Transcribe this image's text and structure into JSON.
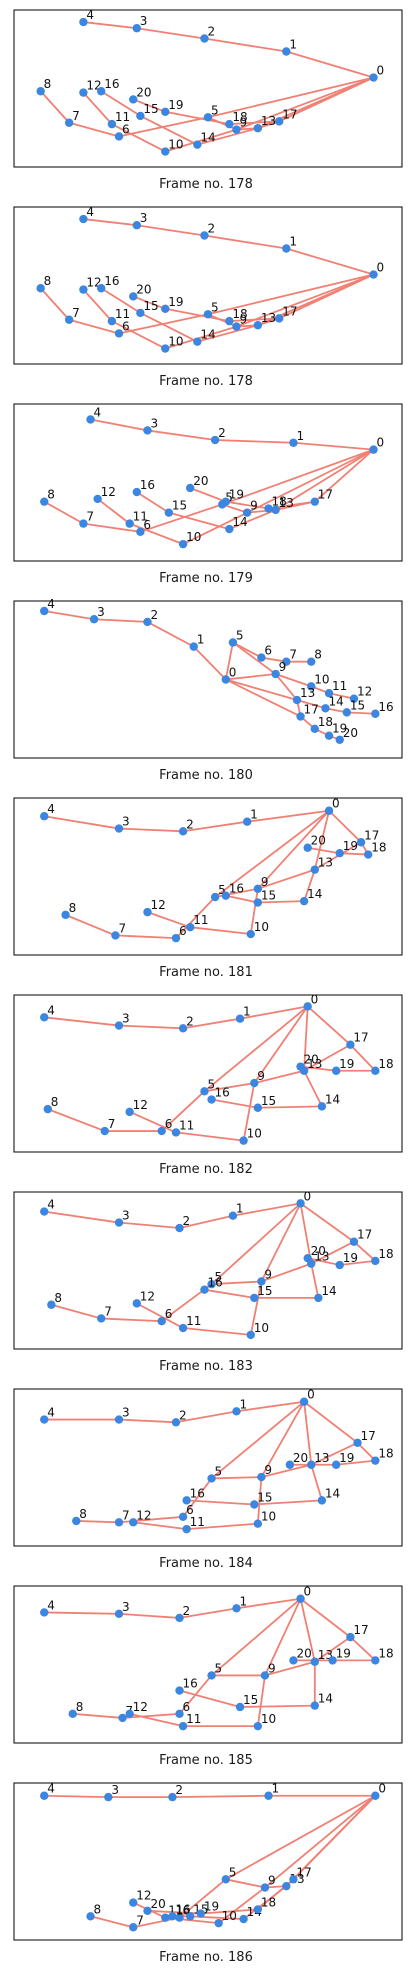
{
  "colors": {
    "edge": "#f08074",
    "node": "#3b86e0",
    "frame": "#000000"
  },
  "edges": [
    [
      0,
      1
    ],
    [
      1,
      2
    ],
    [
      2,
      3
    ],
    [
      3,
      4
    ],
    [
      0,
      5
    ],
    [
      5,
      6
    ],
    [
      6,
      7
    ],
    [
      7,
      8
    ],
    [
      0,
      9
    ],
    [
      9,
      10
    ],
    [
      10,
      11
    ],
    [
      11,
      12
    ],
    [
      0,
      13
    ],
    [
      13,
      14
    ],
    [
      14,
      15
    ],
    [
      15,
      16
    ],
    [
      0,
      17
    ],
    [
      17,
      18
    ],
    [
      18,
      19
    ],
    [
      19,
      20
    ],
    [
      5,
      9
    ],
    [
      9,
      13
    ],
    [
      13,
      17
    ]
  ],
  "panels": [
    {
      "caption": "Frame no. 178",
      "nodes": [
        [
          0.965,
          0.42
        ],
        [
          0.72,
          0.23
        ],
        [
          0.49,
          0.135
        ],
        [
          0.3,
          0.06
        ],
        [
          0.15,
          0.015
        ],
        [
          0.5,
          0.71
        ],
        [
          0.25,
          0.85
        ],
        [
          0.11,
          0.75
        ],
        [
          0.03,
          0.52
        ],
        [
          0.58,
          0.8
        ],
        [
          0.38,
          0.96
        ],
        [
          0.23,
          0.76
        ],
        [
          0.15,
          0.53
        ],
        [
          0.64,
          0.79
        ],
        [
          0.47,
          0.91
        ],
        [
          0.31,
          0.7
        ],
        [
          0.2,
          0.52
        ],
        [
          0.7,
          0.74
        ],
        [
          0.56,
          0.76
        ],
        [
          0.38,
          0.67
        ],
        [
          0.29,
          0.58
        ]
      ]
    },
    {
      "caption": "Frame no. 178",
      "nodes": [
        [
          0.965,
          0.42
        ],
        [
          0.72,
          0.23
        ],
        [
          0.49,
          0.135
        ],
        [
          0.3,
          0.06
        ],
        [
          0.15,
          0.015
        ],
        [
          0.5,
          0.71
        ],
        [
          0.25,
          0.85
        ],
        [
          0.11,
          0.75
        ],
        [
          0.03,
          0.52
        ],
        [
          0.58,
          0.8
        ],
        [
          0.38,
          0.96
        ],
        [
          0.23,
          0.76
        ],
        [
          0.15,
          0.53
        ],
        [
          0.64,
          0.79
        ],
        [
          0.47,
          0.91
        ],
        [
          0.31,
          0.7
        ],
        [
          0.2,
          0.52
        ],
        [
          0.7,
          0.74
        ],
        [
          0.56,
          0.76
        ],
        [
          0.38,
          0.67
        ],
        [
          0.29,
          0.58
        ]
      ]
    },
    {
      "caption": "Frame no. 179",
      "nodes": [
        [
          0.965,
          0.26
        ],
        [
          0.74,
          0.21
        ],
        [
          0.52,
          0.19
        ],
        [
          0.33,
          0.12
        ],
        [
          0.17,
          0.04
        ],
        [
          0.54,
          0.66
        ],
        [
          0.31,
          0.86
        ],
        [
          0.15,
          0.8
        ],
        [
          0.04,
          0.64
        ],
        [
          0.61,
          0.72
        ],
        [
          0.43,
          0.95
        ],
        [
          0.28,
          0.8
        ],
        [
          0.19,
          0.62
        ],
        [
          0.69,
          0.7
        ],
        [
          0.56,
          0.84
        ],
        [
          0.39,
          0.72
        ],
        [
          0.3,
          0.57
        ],
        [
          0.8,
          0.64
        ],
        [
          0.67,
          0.69
        ],
        [
          0.55,
          0.64
        ],
        [
          0.45,
          0.54
        ]
      ]
    },
    {
      "caption": "Frame no. 180",
      "nodes": [
        [
          0.55,
          0.5
        ],
        [
          0.46,
          0.26
        ],
        [
          0.33,
          0.08
        ],
        [
          0.18,
          0.06
        ],
        [
          0.04,
          0.0
        ],
        [
          0.57,
          0.23
        ],
        [
          0.65,
          0.34
        ],
        [
          0.72,
          0.37
        ],
        [
          0.79,
          0.37
        ],
        [
          0.69,
          0.46
        ],
        [
          0.79,
          0.55
        ],
        [
          0.84,
          0.6
        ],
        [
          0.91,
          0.64
        ],
        [
          0.75,
          0.65
        ],
        [
          0.83,
          0.71
        ],
        [
          0.89,
          0.74
        ],
        [
          0.97,
          0.75
        ],
        [
          0.76,
          0.77
        ],
        [
          0.8,
          0.86
        ],
        [
          0.84,
          0.91
        ],
        [
          0.87,
          0.94
        ]
      ]
    },
    {
      "caption": "Frame no. 181",
      "nodes": [
        [
          0.84,
          0.02
        ],
        [
          0.61,
          0.1
        ],
        [
          0.43,
          0.17
        ],
        [
          0.25,
          0.15
        ],
        [
          0.04,
          0.06
        ],
        [
          0.52,
          0.65
        ],
        [
          0.41,
          0.95
        ],
        [
          0.24,
          0.93
        ],
        [
          0.1,
          0.78
        ],
        [
          0.64,
          0.59
        ],
        [
          0.62,
          0.92
        ],
        [
          0.45,
          0.87
        ],
        [
          0.33,
          0.76
        ],
        [
          0.8,
          0.45
        ],
        [
          0.77,
          0.68
        ],
        [
          0.64,
          0.69
        ],
        [
          0.55,
          0.64
        ],
        [
          0.93,
          0.25
        ],
        [
          0.95,
          0.34
        ],
        [
          0.87,
          0.33
        ],
        [
          0.78,
          0.29
        ]
      ]
    },
    {
      "caption": "Frame no. 182",
      "nodes": [
        [
          0.78,
          0.01
        ],
        [
          0.59,
          0.1
        ],
        [
          0.43,
          0.17
        ],
        [
          0.25,
          0.15
        ],
        [
          0.04,
          0.09
        ],
        [
          0.49,
          0.63
        ],
        [
          0.37,
          0.92
        ],
        [
          0.21,
          0.92
        ],
        [
          0.05,
          0.76
        ],
        [
          0.63,
          0.57
        ],
        [
          0.6,
          0.99
        ],
        [
          0.41,
          0.93
        ],
        [
          0.28,
          0.78
        ],
        [
          0.77,
          0.48
        ],
        [
          0.82,
          0.74
        ],
        [
          0.64,
          0.75
        ],
        [
          0.51,
          0.69
        ],
        [
          0.9,
          0.29
        ],
        [
          0.97,
          0.48
        ],
        [
          0.86,
          0.48
        ],
        [
          0.76,
          0.45
        ]
      ]
    },
    {
      "caption": "Frame no. 183",
      "nodes": [
        [
          0.76,
          0.01
        ],
        [
          0.57,
          0.1
        ],
        [
          0.42,
          0.19
        ],
        [
          0.25,
          0.15
        ],
        [
          0.04,
          0.07
        ],
        [
          0.51,
          0.6
        ],
        [
          0.37,
          0.87
        ],
        [
          0.2,
          0.85
        ],
        [
          0.06,
          0.75
        ],
        [
          0.65,
          0.58
        ],
        [
          0.62,
          0.97
        ],
        [
          0.43,
          0.92
        ],
        [
          0.3,
          0.74
        ],
        [
          0.79,
          0.45
        ],
        [
          0.81,
          0.7
        ],
        [
          0.63,
          0.7
        ],
        [
          0.49,
          0.64
        ],
        [
          0.91,
          0.29
        ],
        [
          0.97,
          0.43
        ],
        [
          0.87,
          0.46
        ],
        [
          0.78,
          0.41
        ]
      ]
    },
    {
      "caption": "Frame no. 184",
      "nodes": [
        [
          0.77,
          0.02
        ],
        [
          0.58,
          0.09
        ],
        [
          0.41,
          0.17
        ],
        [
          0.25,
          0.15
        ],
        [
          0.04,
          0.15
        ],
        [
          0.51,
          0.58
        ],
        [
          0.43,
          0.86
        ],
        [
          0.25,
          0.9
        ],
        [
          0.13,
          0.89
        ],
        [
          0.65,
          0.57
        ],
        [
          0.64,
          0.91
        ],
        [
          0.44,
          0.95
        ],
        [
          0.29,
          0.9
        ],
        [
          0.79,
          0.48
        ],
        [
          0.82,
          0.74
        ],
        [
          0.63,
          0.77
        ],
        [
          0.44,
          0.74
        ],
        [
          0.92,
          0.32
        ],
        [
          0.97,
          0.45
        ],
        [
          0.86,
          0.48
        ],
        [
          0.73,
          0.48
        ]
      ]
    },
    {
      "caption": "Frame no. 185",
      "nodes": [
        [
          0.76,
          0.02
        ],
        [
          0.58,
          0.09
        ],
        [
          0.42,
          0.16
        ],
        [
          0.25,
          0.13
        ],
        [
          0.04,
          0.12
        ],
        [
          0.51,
          0.58
        ],
        [
          0.42,
          0.86
        ],
        [
          0.26,
          0.89
        ],
        [
          0.12,
          0.86
        ],
        [
          0.66,
          0.58
        ],
        [
          0.64,
          0.95
        ],
        [
          0.43,
          0.95
        ],
        [
          0.28,
          0.86
        ],
        [
          0.8,
          0.48
        ],
        [
          0.8,
          0.8
        ],
        [
          0.59,
          0.81
        ],
        [
          0.42,
          0.69
        ],
        [
          0.9,
          0.3
        ],
        [
          0.97,
          0.47
        ],
        [
          0.85,
          0.47
        ],
        [
          0.74,
          0.47
        ]
      ]
    },
    {
      "caption": "Frame no. 186",
      "nodes": [
        [
          0.97,
          0.02
        ],
        [
          0.67,
          0.02
        ],
        [
          0.4,
          0.03
        ],
        [
          0.22,
          0.03
        ],
        [
          0.04,
          0.02
        ],
        [
          0.55,
          0.63
        ],
        [
          0.42,
          0.91
        ],
        [
          0.29,
          0.98
        ],
        [
          0.17,
          0.9
        ],
        [
          0.66,
          0.69
        ],
        [
          0.53,
          0.95
        ],
        [
          0.38,
          0.91
        ],
        [
          0.29,
          0.8
        ],
        [
          0.72,
          0.68
        ],
        [
          0.6,
          0.92
        ],
        [
          0.45,
          0.9
        ],
        [
          0.4,
          0.9
        ],
        [
          0.74,
          0.63
        ],
        [
          0.64,
          0.85
        ],
        [
          0.48,
          0.88
        ],
        [
          0.33,
          0.86
        ]
      ]
    }
  ]
}
